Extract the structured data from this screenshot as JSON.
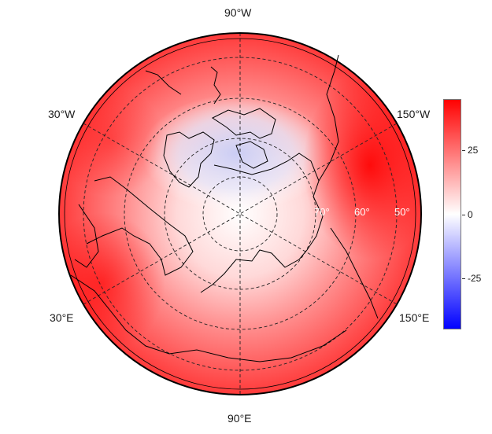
{
  "map": {
    "projection": "north-polar-stereographic",
    "lon_labels": {
      "top": "90°W",
      "left_upper": "30°W",
      "left_lower": "30°E",
      "bottom": "90°E",
      "right_upper": "150°W",
      "right_lower": "150°E"
    },
    "lat_labels": [
      "70°",
      "60°",
      "50°"
    ],
    "colors": {
      "background": "#ffffff",
      "coastline": "#000000",
      "graticule": "#000000"
    }
  },
  "colorbar": {
    "ticks": [
      "25",
      "0",
      "-25"
    ],
    "tick_values": [
      25,
      0,
      -25
    ],
    "range": [
      -45,
      45
    ],
    "colors": {
      "low": "#0000ff",
      "mid": "#ffffff",
      "high": "#ff0000"
    }
  }
}
